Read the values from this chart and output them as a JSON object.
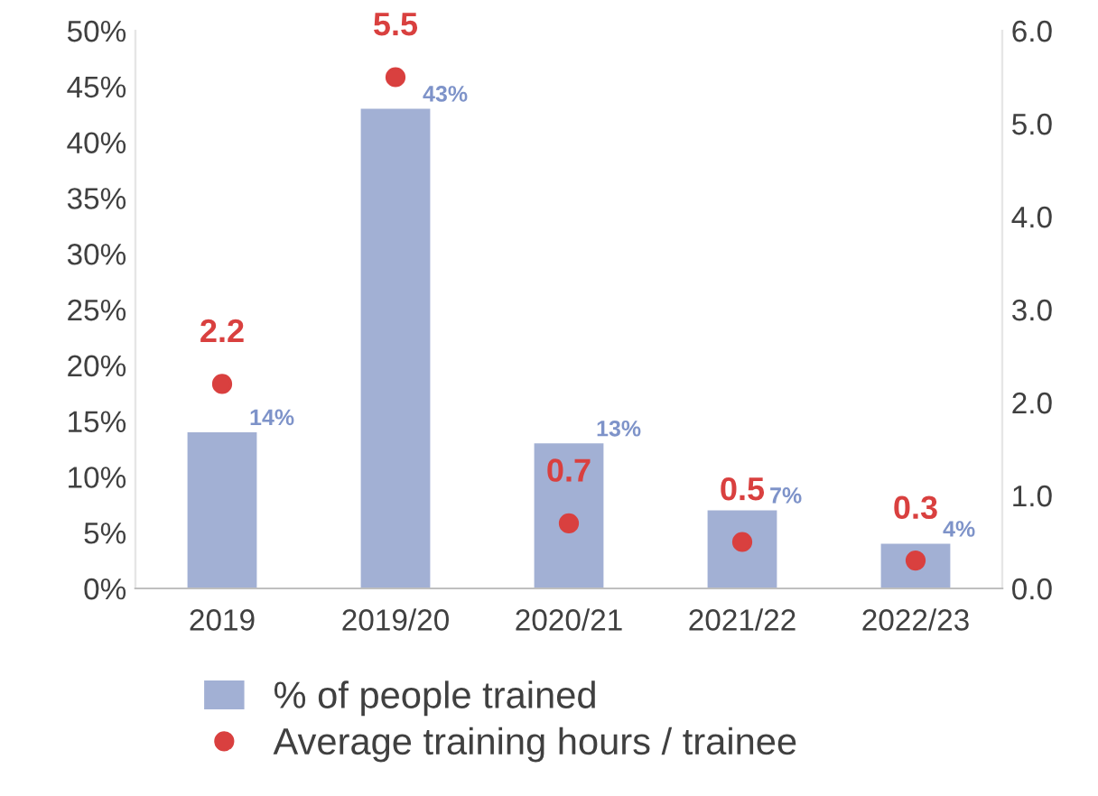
{
  "chart_data": {
    "type": "bar",
    "categories": [
      "2019",
      "2019/20",
      "2020/21",
      "2021/22",
      "2022/23"
    ],
    "series": [
      {
        "name": "% of people trained",
        "color": "#a2b0d4",
        "values": [
          14,
          43,
          13,
          7,
          4
        ],
        "value_labels": [
          "14%",
          "43%",
          "13%",
          "7%",
          "4%"
        ]
      },
      {
        "name": "Average training hours / trainee",
        "type": "scatter",
        "axis": "y2",
        "color": "#d9403f",
        "values": [
          2.2,
          5.5,
          0.7,
          0.5,
          0.3
        ],
        "value_labels": [
          "2.2",
          "5.5",
          "0.7",
          "0.5",
          "0.3"
        ]
      }
    ],
    "ylim": [
      0,
      50
    ],
    "yticks": [
      {
        "value": 0,
        "label": "0%"
      },
      {
        "value": 5,
        "label": "5%"
      },
      {
        "value": 10,
        "label": "10%"
      },
      {
        "value": 15,
        "label": "15%"
      },
      {
        "value": 20,
        "label": "20%"
      },
      {
        "value": 25,
        "label": "25%"
      },
      {
        "value": 30,
        "label": "30%"
      },
      {
        "value": 35,
        "label": "35%"
      },
      {
        "value": 40,
        "label": "40%"
      },
      {
        "value": 45,
        "label": "45%"
      },
      {
        "value": 50,
        "label": "50%"
      }
    ],
    "y2lim": [
      0,
      6
    ],
    "y2ticks": [
      {
        "value": 0,
        "label": "0.0"
      },
      {
        "value": 1,
        "label": "1.0"
      },
      {
        "value": 2,
        "label": "2.0"
      },
      {
        "value": 3,
        "label": "3.0"
      },
      {
        "value": 4,
        "label": "4.0"
      },
      {
        "value": 5,
        "label": "5.0"
      },
      {
        "value": 6,
        "label": "6.0"
      }
    ],
    "legend": "bottom",
    "marker": "circle",
    "grid": false
  }
}
